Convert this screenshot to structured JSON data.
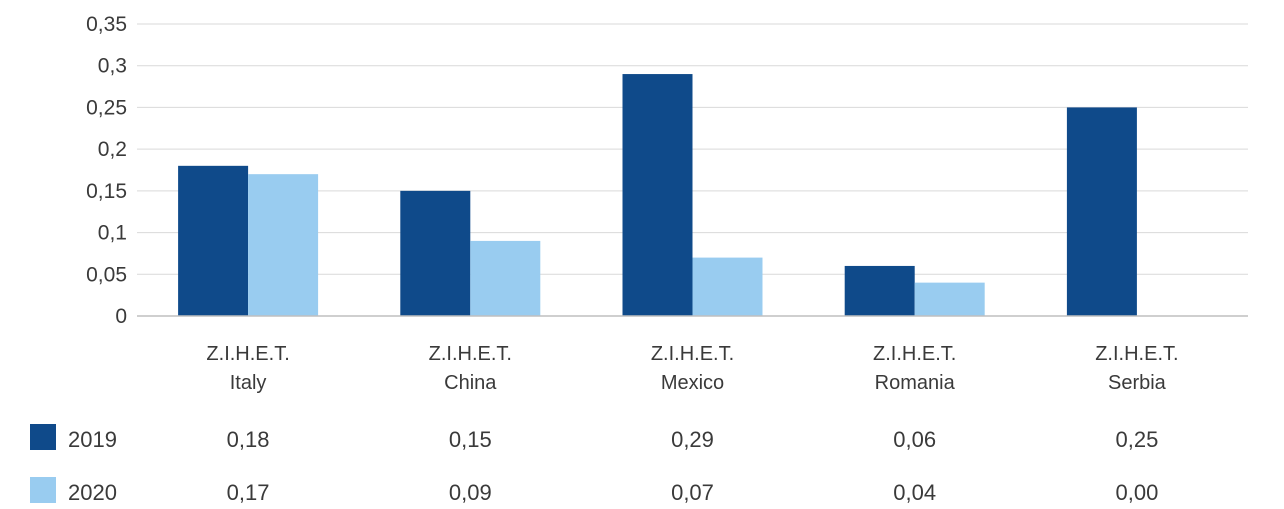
{
  "chart_data": {
    "type": "bar",
    "categories": [
      [
        "Z.I.H.E.T.",
        "Italy"
      ],
      [
        "Z.I.H.E.T.",
        "China"
      ],
      [
        "Z.I.H.E.T.",
        "Mexico"
      ],
      [
        "Z.I.H.E.T.",
        "Romania"
      ],
      [
        "Z.I.H.E.T.",
        "Serbia"
      ]
    ],
    "series": [
      {
        "name": "2019",
        "color": "#0f4a8a",
        "values": [
          0.18,
          0.15,
          0.29,
          0.06,
          0.25
        ],
        "table_values": [
          "0,18",
          "0,15",
          "0,29",
          "0,06",
          "0,25"
        ]
      },
      {
        "name": "2020",
        "color": "#99ccf0",
        "values": [
          0.17,
          0.09,
          0.07,
          0.04,
          0.0
        ],
        "table_values": [
          "0,17",
          "0,09",
          "0,07",
          "0,04",
          "0,00"
        ]
      }
    ],
    "y_ticks": [
      0,
      0.05,
      0.1,
      0.15,
      0.2,
      0.25,
      0.3,
      0.35
    ],
    "y_tick_labels": [
      "0",
      "0,05",
      "0,1",
      "0,15",
      "0,2",
      "0,25",
      "0,3",
      "0,35"
    ],
    "ylim": [
      0,
      0.35
    ],
    "grid": true,
    "legend": "data-table-below",
    "gridline_color": "#d9d9d9",
    "axis_color": "#bfbfbf"
  }
}
